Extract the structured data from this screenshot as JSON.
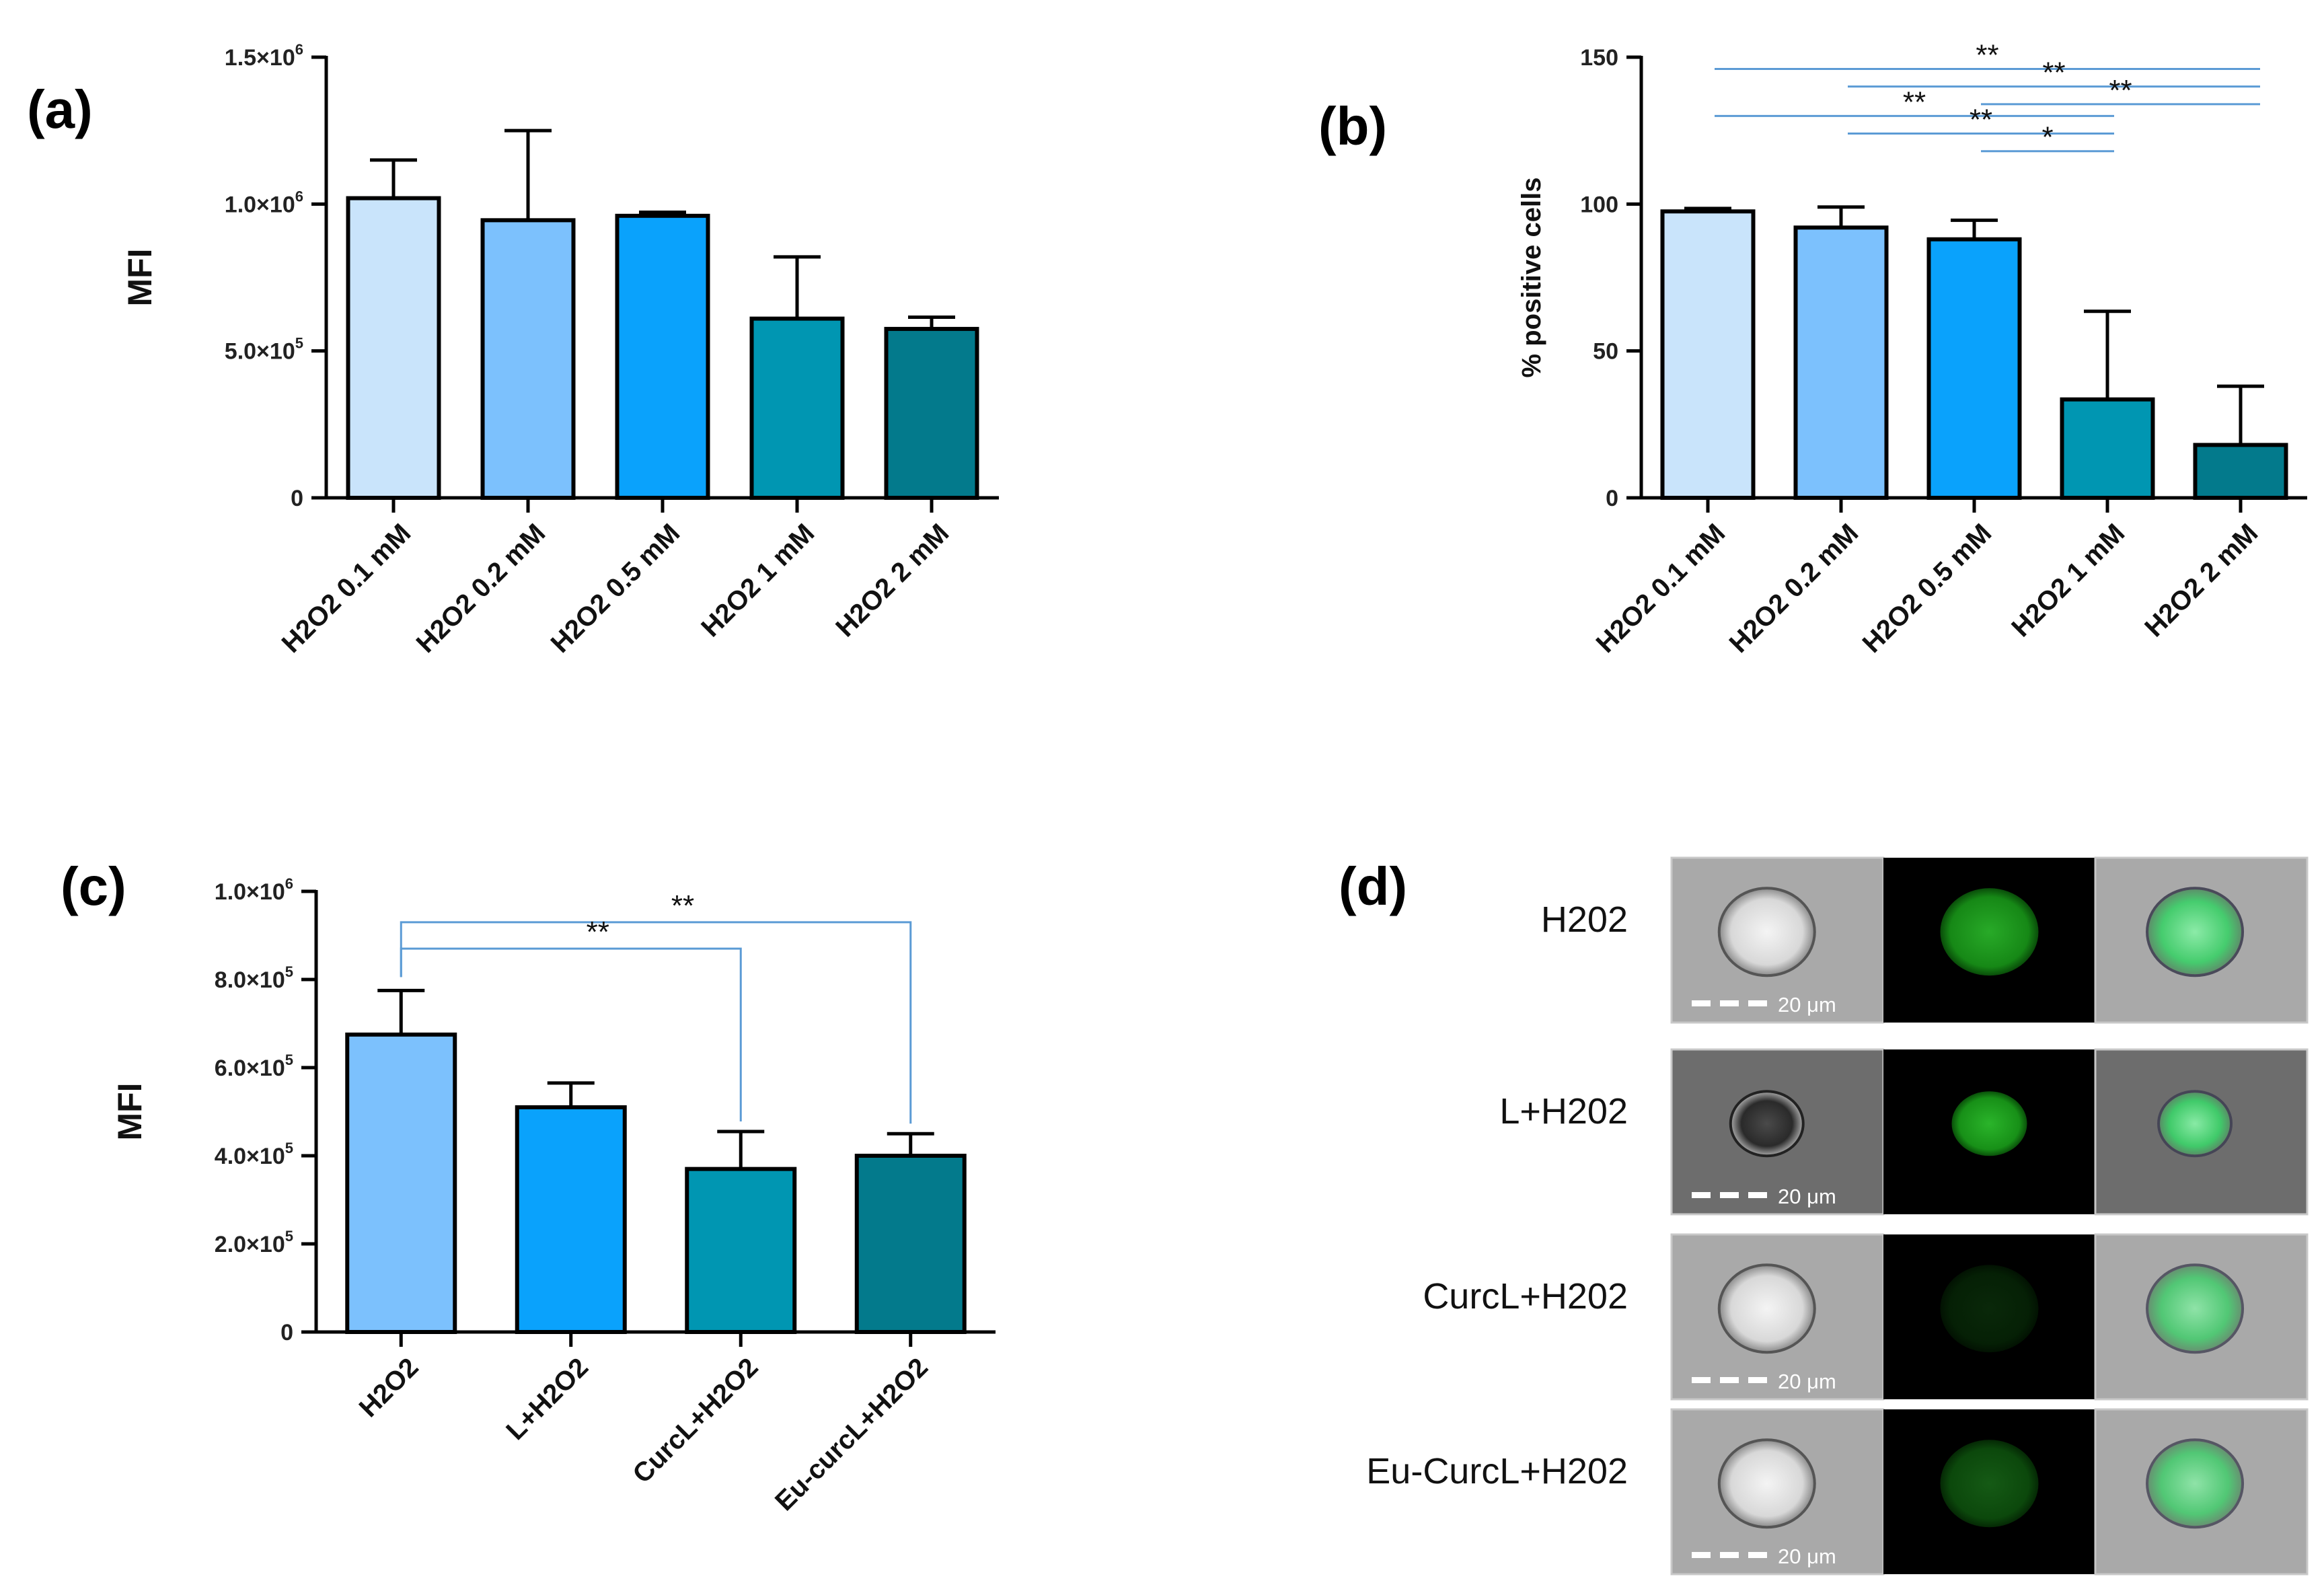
{
  "panel_labels": {
    "a": "(a)",
    "b": "(b)",
    "c": "(c)",
    "d": "(d)"
  },
  "chart_data": [
    {
      "id": "a",
      "type": "bar",
      "title": "",
      "ylabel": "MFI",
      "categories": [
        "H2O2 0.1 mM",
        "H2O2 0.2 mM",
        "H2O2 0.5 mM",
        "H2O2 1 mM",
        "H2O2 2 mM"
      ],
      "values": [
        1020000,
        945000,
        960000,
        610000,
        575000
      ],
      "errors": [
        130000,
        305000,
        12000,
        210000,
        40000
      ],
      "colors": [
        "#c9e4fb",
        "#7cc1fd",
        "#0aa2fc",
        "#0096b2",
        "#037a8c"
      ],
      "ylim": [
        0,
        1500000
      ],
      "yticks": [
        {
          "value": 0,
          "base": "0",
          "exp": ""
        },
        {
          "value": 500000,
          "base": "5.0×10",
          "exp": "5"
        },
        {
          "value": 1000000,
          "base": "1.0×10",
          "exp": "6"
        },
        {
          "value": 1500000,
          "base": "1.5×10",
          "exp": "6"
        }
      ],
      "significance": []
    },
    {
      "id": "b",
      "type": "bar",
      "title": "",
      "ylabel": "% positive cells",
      "categories": [
        "H2O2 0.1 mM",
        "H2O2 0.2 mM",
        "H2O2 0.5 mM",
        "H2O2 1 mM",
        "H2O2 2 mM"
      ],
      "values": [
        97.5,
        92,
        88,
        33.5,
        18
      ],
      "errors": [
        1,
        7,
        6.5,
        30,
        20
      ],
      "colors": [
        "#c9e4fb",
        "#7cc1fd",
        "#0aa2fc",
        "#0096b2",
        "#037a8c"
      ],
      "ylim": [
        0,
        150
      ],
      "yticks": [
        {
          "value": 0,
          "base": "0",
          "exp": ""
        },
        {
          "value": 50,
          "base": "50",
          "exp": ""
        },
        {
          "value": 100,
          "base": "100",
          "exp": ""
        },
        {
          "value": 150,
          "base": "150",
          "exp": ""
        }
      ],
      "significance": [
        {
          "from": 0,
          "to": 4,
          "label": "**",
          "style": "line"
        },
        {
          "from": 0,
          "to": 3,
          "label": "**",
          "style": "line"
        },
        {
          "from": 1,
          "to": 4,
          "label": "**",
          "style": "line"
        },
        {
          "from": 1,
          "to": 3,
          "label": "**",
          "style": "line"
        },
        {
          "from": 2,
          "to": 4,
          "label": "**",
          "style": "line"
        },
        {
          "from": 2,
          "to": 3,
          "label": "*",
          "style": "line"
        }
      ]
    },
    {
      "id": "c",
      "type": "bar",
      "title": "",
      "ylabel": "MFI",
      "categories": [
        "H2O2",
        "L+H2O2",
        "CurcL+H2O2",
        "Eu-curcL+H2O2"
      ],
      "values": [
        675000,
        510000,
        370000,
        400000
      ],
      "errors": [
        100000,
        55000,
        85000,
        50000
      ],
      "colors": [
        "#7cc1fd",
        "#0aa2fc",
        "#0096b2",
        "#037a8c"
      ],
      "ylim": [
        0,
        1000000
      ],
      "yticks": [
        {
          "value": 0,
          "base": "0",
          "exp": ""
        },
        {
          "value": 200000,
          "base": "2.0×10",
          "exp": "5"
        },
        {
          "value": 400000,
          "base": "4.0×10",
          "exp": "5"
        },
        {
          "value": 600000,
          "base": "6.0×10",
          "exp": "5"
        },
        {
          "value": 800000,
          "base": "8.0×10",
          "exp": "5"
        },
        {
          "value": 1000000,
          "base": "1.0×10",
          "exp": "6"
        }
      ],
      "significance": [
        {
          "from": 0,
          "to": 3,
          "label": "**",
          "style": "bracket"
        },
        {
          "from": 0,
          "to": 2,
          "label": "**",
          "style": "bracket"
        }
      ]
    }
  ],
  "panel_d": {
    "rows": [
      {
        "label": "H202",
        "scale": "20 μm",
        "intensity": 0.85
      },
      {
        "label": "L+H202",
        "scale": "20 μm",
        "intensity": 0.9
      },
      {
        "label": "CurcL+H202",
        "scale": "20 μm",
        "intensity": 0.2
      },
      {
        "label": "Eu-CurcL+H202",
        "scale": "20 μm",
        "intensity": 0.45
      }
    ]
  }
}
